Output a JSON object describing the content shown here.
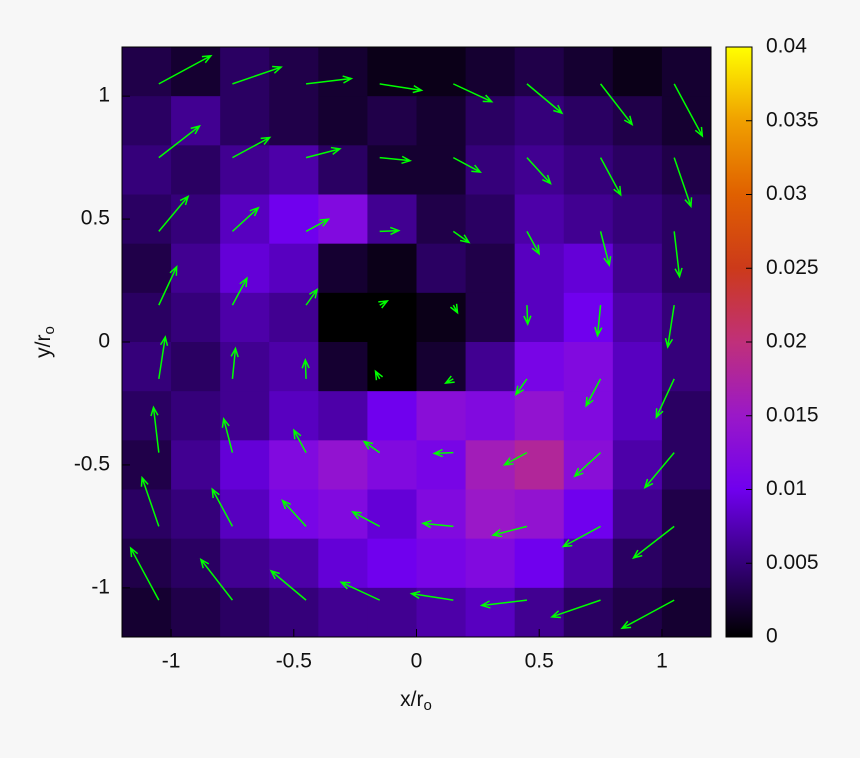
{
  "chart_data": {
    "type": "heatmap-quiver",
    "xlabel": "x/r",
    "xlabel_subscript": "o",
    "ylabel": "y/r",
    "ylabel_subscript": "o",
    "xlim": [
      -1.2,
      1.2
    ],
    "ylim": [
      -1.2,
      1.2
    ],
    "xticks": [
      -1,
      -0.5,
      0,
      0.5,
      1
    ],
    "yticks": [
      -1,
      -0.5,
      0,
      0.5,
      1
    ],
    "heatmap": {
      "x": [
        -1.1,
        -0.9,
        -0.7,
        -0.5,
        -0.3,
        -0.1,
        0.1,
        0.3,
        0.5,
        0.7,
        0.9,
        1.1
      ],
      "y": [
        1.1,
        0.9,
        0.7,
        0.5,
        0.3,
        0.1,
        -0.1,
        -0.3,
        -0.5,
        -0.7,
        -0.9,
        -1.1
      ],
      "z": [
        [
          0.003,
          0.002,
          0.004,
          0.003,
          0.002,
          0.001,
          0.001,
          0.002,
          0.003,
          0.002,
          0.001,
          0.002
        ],
        [
          0.004,
          0.006,
          0.004,
          0.003,
          0.002,
          0.003,
          0.002,
          0.004,
          0.005,
          0.004,
          0.003,
          0.002
        ],
        [
          0.005,
          0.004,
          0.006,
          0.007,
          0.004,
          0.002,
          0.002,
          0.005,
          0.006,
          0.005,
          0.004,
          0.003
        ],
        [
          0.004,
          0.005,
          0.008,
          0.01,
          0.012,
          0.006,
          0.003,
          0.004,
          0.007,
          0.006,
          0.005,
          0.004
        ],
        [
          0.003,
          0.006,
          0.009,
          0.008,
          0.002,
          0.001,
          0.004,
          0.003,
          0.008,
          0.009,
          0.006,
          0.004
        ],
        [
          0.004,
          0.005,
          0.007,
          0.006,
          0,
          0,
          0.001,
          0.003,
          0.008,
          0.01,
          0.007,
          0.005
        ],
        [
          0.005,
          0.004,
          0.006,
          0.007,
          0.002,
          0,
          0.002,
          0.006,
          0.011,
          0.012,
          0.008,
          0.005
        ],
        [
          0.004,
          0.005,
          0.006,
          0.008,
          0.007,
          0.01,
          0.013,
          0.012,
          0.014,
          0.012,
          0.008,
          0.004
        ],
        [
          0.003,
          0.006,
          0.009,
          0.012,
          0.014,
          0.012,
          0.011,
          0.016,
          0.018,
          0.013,
          0.007,
          0.004
        ],
        [
          0.004,
          0.005,
          0.008,
          0.011,
          0.012,
          0.009,
          0.012,
          0.015,
          0.014,
          0.01,
          0.006,
          0.003
        ],
        [
          0.003,
          0.004,
          0.006,
          0.007,
          0.009,
          0.01,
          0.011,
          0.012,
          0.01,
          0.007,
          0.004,
          0.003
        ],
        [
          0.002,
          0.003,
          0.004,
          0.005,
          0.006,
          0.006,
          0.007,
          0.008,
          0.006,
          0.004,
          0.003,
          0.002
        ]
      ]
    },
    "colormap": [
      "#000000",
      "#35007a",
      "#7000ee",
      "#9a18c8",
      "#c0307a",
      "#cc3a1a",
      "#e06000",
      "#f0a000",
      "#ffff00"
    ],
    "clim": [
      0,
      0.04
    ],
    "cticks": [
      0,
      0.005,
      0.01,
      0.015,
      0.02,
      0.025,
      0.03,
      0.035,
      0.04
    ],
    "quiver": {
      "color": "#00ff00",
      "x": [
        -1.05,
        -0.75,
        -0.45,
        -0.15,
        0.15,
        0.45,
        0.75,
        1.05
      ],
      "y": [
        1.05,
        0.75,
        0.45,
        0.15,
        -0.15,
        -0.45,
        -0.75,
        -1.05
      ],
      "u": [
        [
          1.37,
          1.28,
          1.19,
          1.1,
          1.01,
          0.92,
          0.83,
          0.74
        ],
        [
          1.07,
          0.98,
          0.89,
          0.8,
          0.71,
          0.62,
          0.53,
          0.44
        ],
        [
          0.77,
          0.68,
          0.59,
          0.5,
          0.41,
          0.32,
          0.23,
          0.14
        ],
        [
          0.47,
          0.38,
          0.29,
          0.2,
          0.11,
          0.02,
          -0.08,
          -0.17
        ],
        [
          0.17,
          0.08,
          -0.02,
          -0.11,
          -0.2,
          -0.29,
          -0.38,
          -0.47
        ],
        [
          -0.14,
          -0.23,
          -0.32,
          -0.41,
          -0.5,
          -0.59,
          -0.68,
          -0.77
        ],
        [
          -0.44,
          -0.53,
          -0.62,
          -0.71,
          -0.8,
          -0.89,
          -0.98,
          -1.07
        ],
        [
          -0.74,
          -0.83,
          -0.92,
          -1.01,
          -1.1,
          -1.19,
          -1.28,
          -1.37
        ]
      ],
      "v": [
        [
          0.74,
          0.44,
          0.14,
          -0.17,
          -0.47,
          -0.77,
          -1.07,
          -1.37
        ],
        [
          0.83,
          0.53,
          0.23,
          -0.08,
          -0.38,
          -0.68,
          -0.98,
          -1.28
        ],
        [
          0.92,
          0.62,
          0.32,
          0.02,
          -0.29,
          -0.59,
          -0.89,
          -1.19
        ],
        [
          1.01,
          0.71,
          0.41,
          0.11,
          -0.2,
          -0.5,
          -0.8,
          -1.1
        ],
        [
          1.1,
          0.8,
          0.5,
          0.2,
          -0.11,
          -0.41,
          -0.71,
          -1.01
        ],
        [
          1.19,
          0.89,
          0.59,
          0.29,
          -0.02,
          -0.32,
          -0.62,
          -0.92
        ],
        [
          1.28,
          0.98,
          0.68,
          0.38,
          0.08,
          -0.23,
          -0.53,
          -0.83
        ],
        [
          1.37,
          1.07,
          0.77,
          0.47,
          0.17,
          -0.14,
          -0.44,
          -0.74
        ]
      ]
    }
  }
}
